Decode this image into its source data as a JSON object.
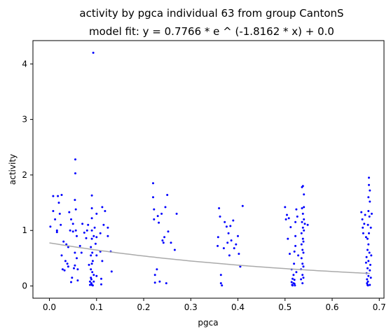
{
  "chart_data": {
    "type": "scatter",
    "title": "activity by pgca individual 63 from group CantonS",
    "subtitle": "model fit: y = 0.7766 * e ^ (-1.8162 * x) + 0.0",
    "xlabel": "pgca",
    "ylabel": "activity",
    "xlim": [
      -0.035,
      0.71
    ],
    "ylim": [
      -0.22,
      4.42
    ],
    "xticks": [
      {
        "value": 0.0,
        "label": "0.0"
      },
      {
        "value": 0.1,
        "label": "0.1"
      },
      {
        "value": 0.2,
        "label": "0.2"
      },
      {
        "value": 0.3,
        "label": "0.3"
      },
      {
        "value": 0.4,
        "label": "0.4"
      },
      {
        "value": 0.5,
        "label": "0.5"
      },
      {
        "value": 0.6,
        "label": "0.6"
      },
      {
        "value": 0.7,
        "label": "0.7"
      }
    ],
    "yticks": [
      {
        "value": 0,
        "label": "0"
      },
      {
        "value": 1,
        "label": "1"
      },
      {
        "value": 2,
        "label": "2"
      },
      {
        "value": 3,
        "label": "3"
      },
      {
        "value": 4,
        "label": "4"
      }
    ],
    "grid": false,
    "colors": {
      "points": "#0000ff",
      "fit": "#aaaaaa"
    },
    "fit": {
      "a": 0.7766,
      "b": -1.8162,
      "c": 0.0
    },
    "points": [
      [
        0.002,
        1.07
      ],
      [
        0.008,
        1.62
      ],
      [
        0.008,
        1.35
      ],
      [
        0.012,
        1.2
      ],
      [
        0.016,
        1.0
      ],
      [
        0.016,
        0.97
      ],
      [
        0.018,
        1.62
      ],
      [
        0.02,
        1.5
      ],
      [
        0.022,
        1.3
      ],
      [
        0.024,
        1.1
      ],
      [
        0.026,
        1.64
      ],
      [
        0.026,
        0.55
      ],
      [
        0.028,
        0.3
      ],
      [
        0.03,
        0.8
      ],
      [
        0.032,
        0.28
      ],
      [
        0.034,
        0.45
      ],
      [
        0.036,
        0.75
      ],
      [
        0.038,
        0.4
      ],
      [
        0.04,
        0.35
      ],
      [
        0.04,
        0.7
      ],
      [
        0.042,
        1.33
      ],
      [
        0.044,
        1.0
      ],
      [
        0.046,
        1.2
      ],
      [
        0.046,
        0.07
      ],
      [
        0.048,
        0.15
      ],
      [
        0.05,
        1.12
      ],
      [
        0.05,
        0.98
      ],
      [
        0.052,
        0.32
      ],
      [
        0.054,
        0.6
      ],
      [
        0.054,
        0.37
      ],
      [
        0.054,
        1.55
      ],
      [
        0.055,
        2.28
      ],
      [
        0.055,
        2.03
      ],
      [
        0.056,
        1.38
      ],
      [
        0.056,
        1.0
      ],
      [
        0.058,
        0.9
      ],
      [
        0.058,
        0.5
      ],
      [
        0.06,
        0.3
      ],
      [
        0.06,
        0.1
      ],
      [
        0.065,
        0.72
      ],
      [
        0.068,
        0.6
      ],
      [
        0.07,
        1.12
      ],
      [
        0.074,
        0.96
      ],
      [
        0.078,
        0.86
      ],
      [
        0.08,
        1.0
      ],
      [
        0.082,
        1.1
      ],
      [
        0.084,
        0.38
      ],
      [
        0.086,
        0.02
      ],
      [
        0.086,
        0.08
      ],
      [
        0.088,
        0.15
      ],
      [
        0.088,
        0.3
      ],
      [
        0.088,
        0.55
      ],
      [
        0.088,
        0.7
      ],
      [
        0.089,
        0.05
      ],
      [
        0.089,
        0.12
      ],
      [
        0.09,
        0.4
      ],
      [
        0.09,
        0.02
      ],
      [
        0.09,
        0.85
      ],
      [
        0.09,
        1.0
      ],
      [
        0.09,
        1.22
      ],
      [
        0.09,
        1.4
      ],
      [
        0.09,
        1.63
      ],
      [
        0.091,
        0.6
      ],
      [
        0.091,
        0.25
      ],
      [
        0.092,
        0.01
      ],
      [
        0.092,
        0.45
      ],
      [
        0.093,
        4.2
      ],
      [
        0.094,
        0.08
      ],
      [
        0.094,
        0.2
      ],
      [
        0.094,
        0.9
      ],
      [
        0.096,
        1.05
      ],
      [
        0.098,
        0.76
      ],
      [
        0.1,
        1.3
      ],
      [
        0.1,
        0.55
      ],
      [
        0.1,
        0.88
      ],
      [
        0.1,
        0.18
      ],
      [
        0.108,
        0.95
      ],
      [
        0.108,
        0.62
      ],
      [
        0.11,
        0.13
      ],
      [
        0.11,
        0.03
      ],
      [
        0.112,
        0.45
      ],
      [
        0.112,
        1.42
      ],
      [
        0.115,
        1.1
      ],
      [
        0.118,
        1.35
      ],
      [
        0.124,
        1.05
      ],
      [
        0.124,
        0.9
      ],
      [
        0.13,
        0.62
      ],
      [
        0.132,
        0.26
      ],
      [
        0.22,
        1.85
      ],
      [
        0.22,
        1.6
      ],
      [
        0.222,
        1.38
      ],
      [
        0.222,
        1.2
      ],
      [
        0.224,
        0.2
      ],
      [
        0.224,
        0.06
      ],
      [
        0.228,
        0.3
      ],
      [
        0.23,
        1.26
      ],
      [
        0.232,
        1.14
      ],
      [
        0.234,
        0.08
      ],
      [
        0.238,
        1.3
      ],
      [
        0.24,
        0.82
      ],
      [
        0.242,
        0.78
      ],
      [
        0.244,
        0.88
      ],
      [
        0.246,
        1.42
      ],
      [
        0.248,
        0.05
      ],
      [
        0.25,
        1.64
      ],
      [
        0.252,
        0.98
      ],
      [
        0.258,
        0.78
      ],
      [
        0.266,
        0.65
      ],
      [
        0.27,
        1.3
      ],
      [
        0.357,
        0.72
      ],
      [
        0.358,
        0.88
      ],
      [
        0.36,
        1.4
      ],
      [
        0.362,
        1.25
      ],
      [
        0.364,
        0.05
      ],
      [
        0.364,
        0.2
      ],
      [
        0.366,
        0.01
      ],
      [
        0.37,
        0.68
      ],
      [
        0.372,
        1.15
      ],
      [
        0.376,
        1.07
      ],
      [
        0.378,
        0.78
      ],
      [
        0.38,
        0.95
      ],
      [
        0.382,
        0.55
      ],
      [
        0.384,
        1.08
      ],
      [
        0.386,
        0.82
      ],
      [
        0.39,
        1.18
      ],
      [
        0.392,
        0.68
      ],
      [
        0.396,
        0.75
      ],
      [
        0.4,
        0.9
      ],
      [
        0.402,
        0.58
      ],
      [
        0.405,
        0.35
      ],
      [
        0.41,
        1.44
      ],
      [
        0.5,
        1.42
      ],
      [
        0.502,
        1.2
      ],
      [
        0.504,
        1.28
      ],
      [
        0.506,
        0.85
      ],
      [
        0.508,
        1.22
      ],
      [
        0.51,
        0.58
      ],
      [
        0.512,
        1.06
      ],
      [
        0.514,
        0.3
      ],
      [
        0.514,
        0.07
      ],
      [
        0.515,
        0.02
      ],
      [
        0.516,
        0.13
      ],
      [
        0.516,
        0.01
      ],
      [
        0.518,
        0.2
      ],
      [
        0.518,
        0.05
      ],
      [
        0.519,
        0.4
      ],
      [
        0.52,
        0.62
      ],
      [
        0.52,
        0.04
      ],
      [
        0.52,
        0.11
      ],
      [
        0.521,
        0.01
      ],
      [
        0.522,
        0.9
      ],
      [
        0.522,
        1.15
      ],
      [
        0.522,
        0.72
      ],
      [
        0.524,
        1.38
      ],
      [
        0.524,
        0.25
      ],
      [
        0.526,
        1.25
      ],
      [
        0.528,
        0.55
      ],
      [
        0.534,
        0.12
      ],
      [
        0.534,
        0.3
      ],
      [
        0.535,
        0.5
      ],
      [
        0.535,
        0.75
      ],
      [
        0.535,
        0.95
      ],
      [
        0.536,
        1.15
      ],
      [
        0.536,
        1.4
      ],
      [
        0.536,
        1.78
      ],
      [
        0.537,
        0.05
      ],
      [
        0.537,
        0.2
      ],
      [
        0.537,
        0.4
      ],
      [
        0.537,
        0.65
      ],
      [
        0.538,
        0.85
      ],
      [
        0.538,
        1.05
      ],
      [
        0.538,
        1.3
      ],
      [
        0.538,
        1.8
      ],
      [
        0.539,
        0.15
      ],
      [
        0.539,
        0.35
      ],
      [
        0.539,
        0.6
      ],
      [
        0.539,
        0.8
      ],
      [
        0.54,
        1.0
      ],
      [
        0.54,
        1.2
      ],
      [
        0.54,
        1.42
      ],
      [
        0.54,
        1.65
      ],
      [
        0.542,
        1.12
      ],
      [
        0.548,
        1.1
      ],
      [
        0.662,
        1.33
      ],
      [
        0.664,
        1.2
      ],
      [
        0.665,
        1.05
      ],
      [
        0.666,
        0.95
      ],
      [
        0.668,
        1.12
      ],
      [
        0.67,
        1.28
      ],
      [
        0.672,
        0.88
      ],
      [
        0.672,
        0.42
      ],
      [
        0.673,
        0.52
      ],
      [
        0.673,
        0.23
      ],
      [
        0.674,
        0.12
      ],
      [
        0.674,
        0.05
      ],
      [
        0.675,
        0.02
      ],
      [
        0.675,
        0.32
      ],
      [
        0.675,
        0.65
      ],
      [
        0.675,
        0.85
      ],
      [
        0.676,
        1.1
      ],
      [
        0.676,
        0.01
      ],
      [
        0.676,
        0.08
      ],
      [
        0.677,
        0.18
      ],
      [
        0.677,
        0.45
      ],
      [
        0.677,
        0.75
      ],
      [
        0.677,
        1.35
      ],
      [
        0.677,
        1.6
      ],
      [
        0.678,
        1.95
      ],
      [
        0.678,
        1.82
      ],
      [
        0.678,
        0.95
      ],
      [
        0.679,
        0.6
      ],
      [
        0.679,
        1.25
      ],
      [
        0.68,
        1.52
      ],
      [
        0.68,
        1.72
      ],
      [
        0.68,
        0.28
      ],
      [
        0.68,
        0.02
      ],
      [
        0.681,
        0.38
      ],
      [
        0.682,
        1.05
      ],
      [
        0.682,
        0.15
      ],
      [
        0.683,
        0.55
      ],
      [
        0.684,
        1.3
      ]
    ]
  }
}
